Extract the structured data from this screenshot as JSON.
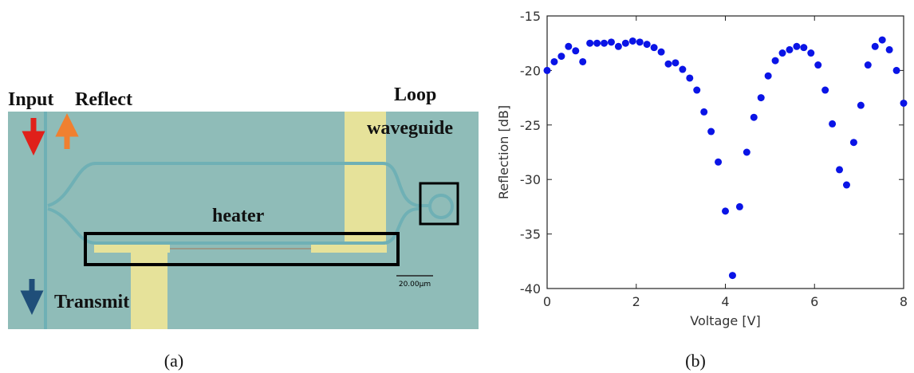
{
  "image_panel": {
    "labels": {
      "input": "Input",
      "reflect": "Reflect",
      "loop": "Loop",
      "waveguide": "waveguide",
      "heater": "heater",
      "transmit": "Transmit",
      "scale": "20.00μm"
    },
    "caption": "(a)"
  },
  "chart_data": {
    "type": "scatter",
    "caption": "(b)",
    "x_label": "Voltage [V]",
    "y_label": "Reflection [dB]",
    "color": "#0a14e6",
    "x": [
      0,
      0.16,
      0.32,
      0.48,
      0.64,
      0.8,
      0.96,
      1.12,
      1.28,
      1.44,
      1.6,
      1.76,
      1.92,
      2.08,
      2.24,
      2.4,
      2.56,
      2.72,
      2.88,
      3.04,
      3.2,
      3.36,
      3.52,
      3.68,
      3.84,
      4.0,
      4.16,
      4.32,
      4.48,
      4.64,
      4.8,
      4.96,
      5.12,
      5.28,
      5.44,
      5.6,
      5.76,
      5.92,
      6.08,
      6.24,
      6.4,
      6.56,
      6.72,
      6.88,
      7.04,
      7.2,
      7.36,
      7.52,
      7.68,
      7.84,
      8.0
    ],
    "values": [
      -20.0,
      -19.2,
      -18.7,
      -17.8,
      -18.2,
      -19.2,
      -17.5,
      -17.5,
      -17.5,
      -17.4,
      -17.8,
      -17.5,
      -17.3,
      -17.4,
      -17.6,
      -17.9,
      -18.3,
      -19.4,
      -19.3,
      -19.9,
      -20.7,
      -21.8,
      -23.8,
      -25.6,
      -28.4,
      -32.9,
      -38.8,
      -32.5,
      -27.5,
      -24.3,
      -22.5,
      -20.5,
      -19.1,
      -18.4,
      -18.1,
      -17.8,
      -17.9,
      -18.4,
      -19.5,
      -21.8,
      -24.9,
      -29.1,
      -30.5,
      -26.6,
      -23.2,
      -19.5,
      -17.8,
      -17.2,
      -18.1,
      -20.0,
      -23.0
    ],
    "xlim": [
      0,
      8
    ],
    "xticks": [
      0,
      2,
      4,
      6,
      8
    ],
    "ylim": [
      -40,
      -15
    ],
    "yticks": [
      -40,
      -35,
      -30,
      -25,
      -20,
      -15
    ]
  }
}
